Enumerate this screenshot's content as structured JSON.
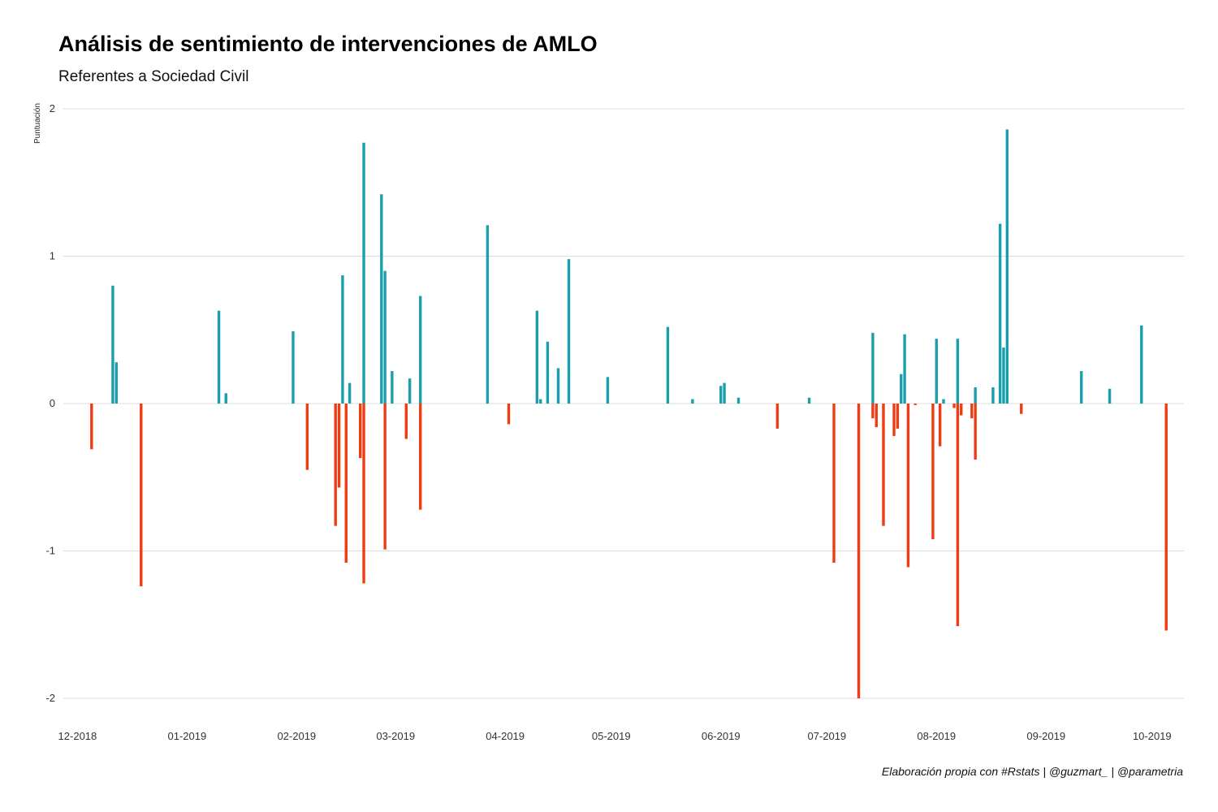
{
  "chart_data": {
    "type": "bar",
    "title": "Análisis de sentimiento de intervenciones de AMLO",
    "subtitle": "Referentes a Sociedad Civil",
    "xlabel": "",
    "ylabel": "Puntuación",
    "caption": "Elaboración propia con #Rstats | @guzmart_ | @parametria",
    "ylim": [
      -2,
      2
    ],
    "xlim": [
      "2018-11-27",
      "2019-10-10"
    ],
    "yticks": [
      2,
      1,
      0,
      -1,
      -2
    ],
    "xticks": [
      {
        "date": "2018-12-01",
        "label": "12-2018"
      },
      {
        "date": "2019-01-01",
        "label": "01-2019"
      },
      {
        "date": "2019-02-01",
        "label": "02-2019"
      },
      {
        "date": "2019-03-01",
        "label": "03-2019"
      },
      {
        "date": "2019-04-01",
        "label": "04-2019"
      },
      {
        "date": "2019-05-01",
        "label": "05-2019"
      },
      {
        "date": "2019-06-01",
        "label": "06-2019"
      },
      {
        "date": "2019-07-01",
        "label": "07-2019"
      },
      {
        "date": "2019-08-01",
        "label": "08-2019"
      },
      {
        "date": "2019-09-01",
        "label": "09-2019"
      },
      {
        "date": "2019-10-01",
        "label": "10-2019"
      }
    ],
    "grid": true,
    "colors": {
      "positive": "#1b9fac",
      "negative": "#ee3d12"
    },
    "series": [
      {
        "points": [
          {
            "x": "2018-12-05",
            "y": -0.31
          },
          {
            "x": "2018-12-11",
            "y": 0.8
          },
          {
            "x": "2018-12-12",
            "y": 0.28
          },
          {
            "x": "2018-12-19",
            "y": -1.24
          },
          {
            "x": "2019-01-10",
            "y": 0.63
          },
          {
            "x": "2019-01-12",
            "y": 0.07
          },
          {
            "x": "2019-01-31",
            "y": 0.49
          },
          {
            "x": "2019-02-04",
            "y": -0.45
          },
          {
            "x": "2019-02-12",
            "y": -0.83
          },
          {
            "x": "2019-02-13",
            "y": -0.57
          },
          {
            "x": "2019-02-14",
            "y": 0.87
          },
          {
            "x": "2019-02-15",
            "y": -1.08
          },
          {
            "x": "2019-02-16",
            "y": 0.14
          },
          {
            "x": "2019-02-19",
            "y": -0.37
          },
          {
            "x": "2019-02-20",
            "y": 1.77
          },
          {
            "x": "2019-02-20",
            "y": -1.22
          },
          {
            "x": "2019-02-25",
            "y": 1.42
          },
          {
            "x": "2019-02-26",
            "y": 0.9
          },
          {
            "x": "2019-02-26",
            "y": -0.99
          },
          {
            "x": "2019-02-28",
            "y": 0.22
          },
          {
            "x": "2019-03-04",
            "y": -0.24
          },
          {
            "x": "2019-03-05",
            "y": 0.17
          },
          {
            "x": "2019-03-08",
            "y": 0.73
          },
          {
            "x": "2019-03-08",
            "y": -0.72
          },
          {
            "x": "2019-03-27",
            "y": 1.21
          },
          {
            "x": "2019-04-02",
            "y": -0.14
          },
          {
            "x": "2019-04-10",
            "y": 0.63
          },
          {
            "x": "2019-04-11",
            "y": 0.03
          },
          {
            "x": "2019-04-13",
            "y": 0.42
          },
          {
            "x": "2019-04-16",
            "y": 0.24
          },
          {
            "x": "2019-04-19",
            "y": 0.98
          },
          {
            "x": "2019-04-30",
            "y": 0.18
          },
          {
            "x": "2019-05-17",
            "y": 0.52
          },
          {
            "x": "2019-05-24",
            "y": 0.03
          },
          {
            "x": "2019-06-01",
            "y": 0.12
          },
          {
            "x": "2019-06-02",
            "y": 0.14
          },
          {
            "x": "2019-06-06",
            "y": 0.04
          },
          {
            "x": "2019-06-17",
            "y": -0.17
          },
          {
            "x": "2019-06-26",
            "y": 0.04
          },
          {
            "x": "2019-07-03",
            "y": -1.08
          },
          {
            "x": "2019-07-10",
            "y": -2.0
          },
          {
            "x": "2019-07-14",
            "y": 0.48
          },
          {
            "x": "2019-07-14",
            "y": -0.1
          },
          {
            "x": "2019-07-15",
            "y": -0.16
          },
          {
            "x": "2019-07-17",
            "y": -0.83
          },
          {
            "x": "2019-07-20",
            "y": -0.22
          },
          {
            "x": "2019-07-21",
            "y": -0.17
          },
          {
            "x": "2019-07-22",
            "y": 0.2
          },
          {
            "x": "2019-07-23",
            "y": 0.47
          },
          {
            "x": "2019-07-24",
            "y": -1.11
          },
          {
            "x": "2019-07-26",
            "y": -0.01
          },
          {
            "x": "2019-07-31",
            "y": -0.92
          },
          {
            "x": "2019-08-01",
            "y": 0.44
          },
          {
            "x": "2019-08-02",
            "y": -0.29
          },
          {
            "x": "2019-08-03",
            "y": 0.03
          },
          {
            "x": "2019-08-06",
            "y": -0.03
          },
          {
            "x": "2019-08-07",
            "y": 0.44
          },
          {
            "x": "2019-08-07",
            "y": -1.51
          },
          {
            "x": "2019-08-08",
            "y": -0.08
          },
          {
            "x": "2019-08-11",
            "y": -0.1
          },
          {
            "x": "2019-08-12",
            "y": 0.11
          },
          {
            "x": "2019-08-12",
            "y": -0.38
          },
          {
            "x": "2019-08-17",
            "y": 0.11
          },
          {
            "x": "2019-08-19",
            "y": 1.22
          },
          {
            "x": "2019-08-20",
            "y": 0.38
          },
          {
            "x": "2019-08-21",
            "y": 1.86
          },
          {
            "x": "2019-08-25",
            "y": -0.07
          },
          {
            "x": "2019-09-11",
            "y": 0.22
          },
          {
            "x": "2019-09-19",
            "y": 0.1
          },
          {
            "x": "2019-09-28",
            "y": 0.53
          },
          {
            "x": "2019-10-05",
            "y": -1.54
          }
        ]
      }
    ]
  }
}
